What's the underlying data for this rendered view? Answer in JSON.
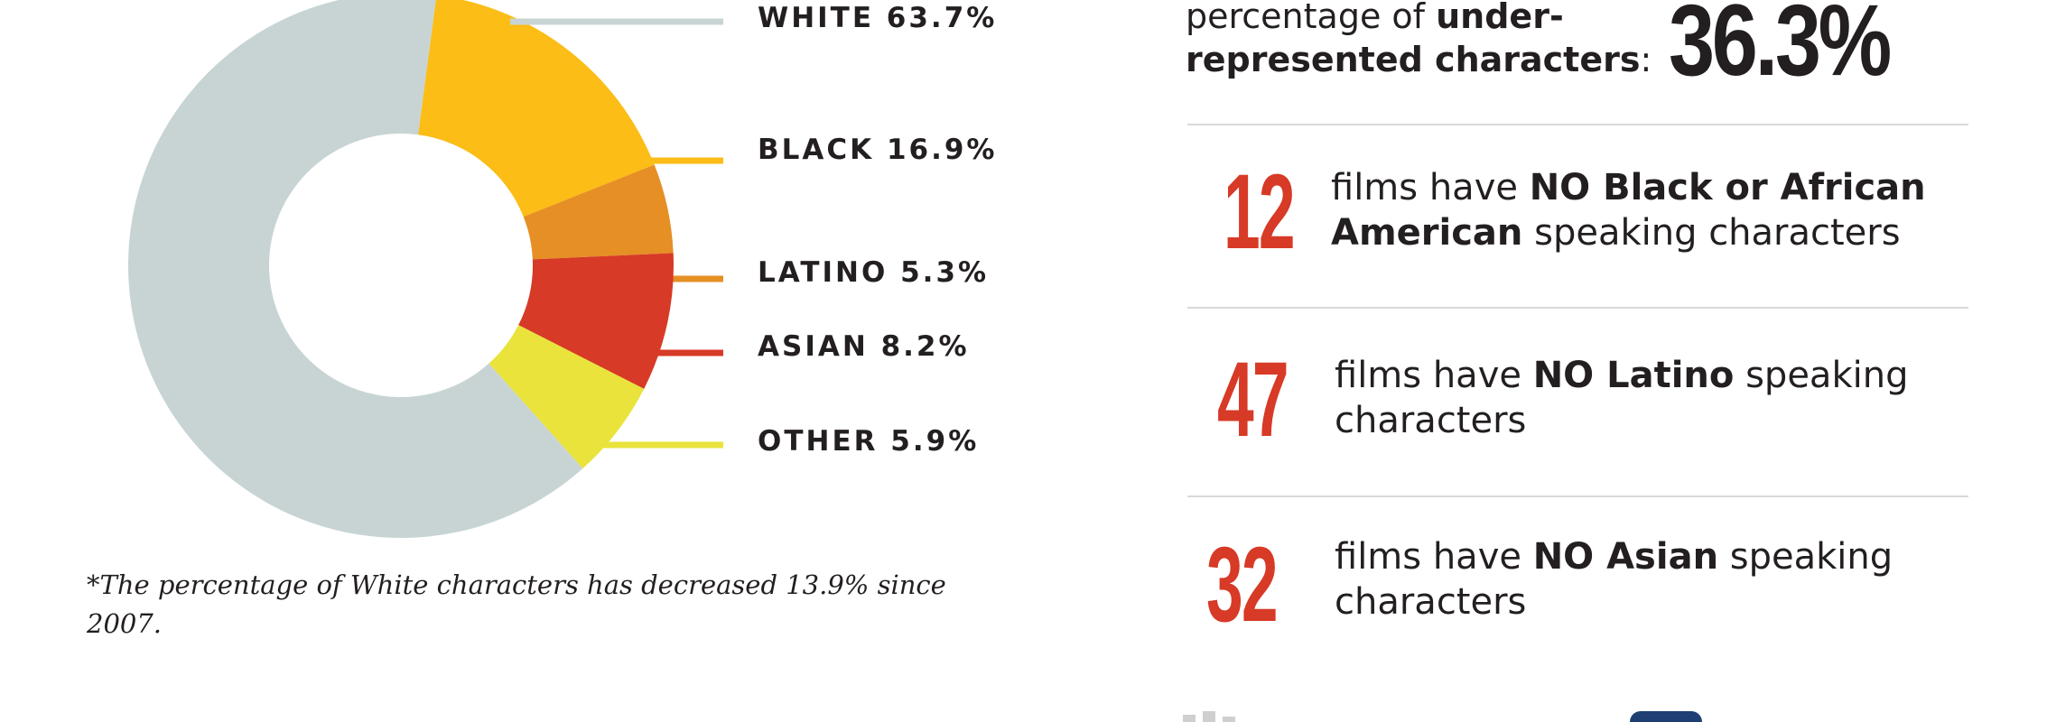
{
  "chart_data": {
    "type": "pie",
    "categories": [
      "WHITE",
      "BLACK",
      "LATINO",
      "ASIAN",
      "OTHER"
    ],
    "values": [
      63.7,
      16.9,
      5.3,
      8.2,
      5.9
    ],
    "labels": [
      "WHITE 63.7%",
      "BLACK 16.9%",
      "LATINO 5.3%",
      "ASIAN 8.2%",
      "OTHER 5.9%"
    ],
    "colors": [
      "#c8d4d4",
      "#fbbd16",
      "#e68f25",
      "#d73a26",
      "#e9e33b"
    ],
    "donut": true
  },
  "footnote": "*The percentage of White characters has decreased 13.9% since 2007.",
  "top_stat": {
    "label_plain_1": "percentage of ",
    "label_bold_1": "under-",
    "label_bold_2": "represented characters",
    "label_plain_2": ":",
    "value": "36.3%"
  },
  "stats": [
    {
      "number": "12",
      "pre": "films have ",
      "bold": "NO Black or African American",
      "post": " speaking characters"
    },
    {
      "number": "47",
      "pre": "films have ",
      "bold": "NO Latino",
      "post": " speaking characters"
    },
    {
      "number": "32",
      "pre": "films have ",
      "bold": "NO Asian",
      "post": " speaking characters"
    }
  ],
  "icons": [
    "logo-left",
    "logo-right"
  ]
}
